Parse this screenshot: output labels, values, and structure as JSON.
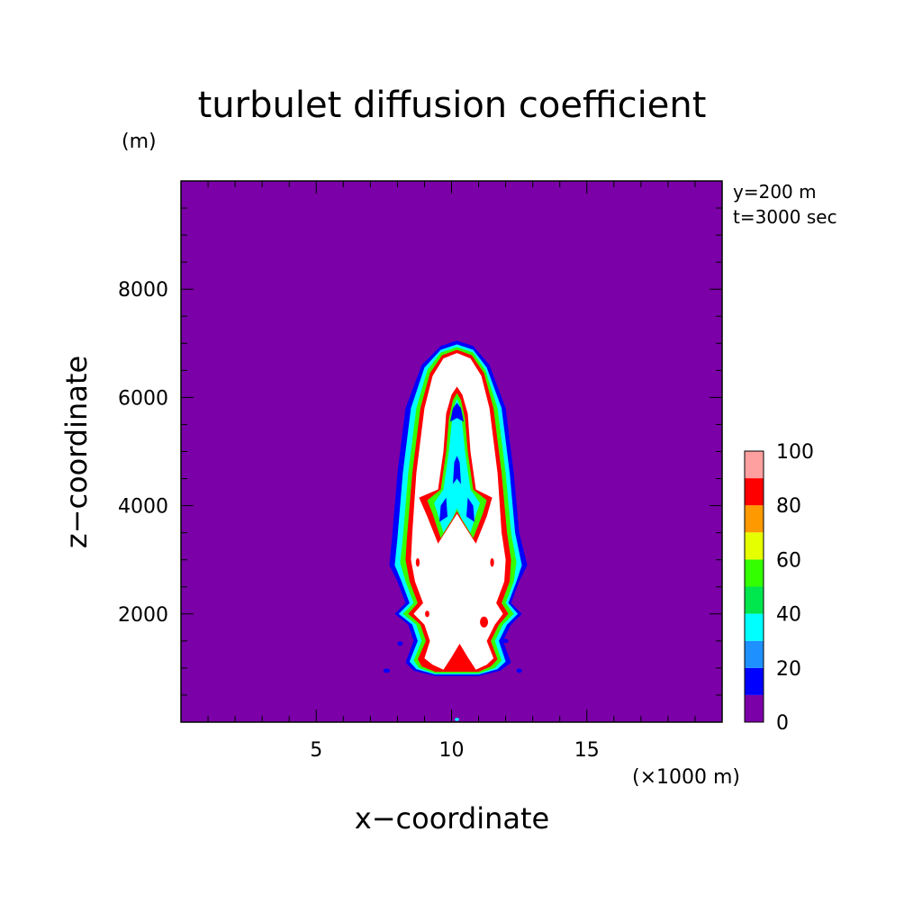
{
  "chart_data": {
    "type": "heatmap",
    "title": "turbulet diffusion coefficient",
    "xlabel": "x−coordinate",
    "ylabel": "z−coordinate",
    "x_unit": "(×1000 m)",
    "y_unit": "(m)",
    "annotations": [
      "y=200 m",
      "t=3000 sec"
    ],
    "xlim": [
      0,
      20
    ],
    "ylim": [
      0,
      10000
    ],
    "x_ticks": [
      5,
      10,
      15
    ],
    "y_ticks": [
      2000,
      4000,
      6000,
      8000
    ],
    "colorbar": {
      "levels": [
        0,
        10,
        20,
        30,
        40,
        50,
        60,
        70,
        80,
        90,
        100
      ],
      "tick_labels": [
        "0",
        "20",
        "40",
        "60",
        "80",
        "100"
      ],
      "colors": [
        "#7b00a8",
        "#0000ff",
        "#1e90ff",
        "#00ffff",
        "#00e64d",
        "#33ff00",
        "#e6ff00",
        "#ff9900",
        "#ff0000",
        "#ffa0a0"
      ],
      "above_max_color": "#ffffff"
    },
    "regions": [
      {
        "name": "outer",
        "level_min": 10,
        "level_max": 20,
        "color": "#0000ff",
        "points": [
          [
            7.7,
            2.9
          ],
          [
            7.8,
            3.4
          ],
          [
            8.0,
            4.6
          ],
          [
            8.3,
            5.8
          ],
          [
            8.9,
            6.6
          ],
          [
            9.6,
            6.95
          ],
          [
            10.2,
            7.05
          ],
          [
            10.8,
            6.95
          ],
          [
            11.4,
            6.6
          ],
          [
            12.0,
            5.8
          ],
          [
            12.3,
            4.6
          ],
          [
            12.5,
            3.5
          ],
          [
            12.8,
            2.9
          ],
          [
            12.5,
            2.6
          ],
          [
            12.2,
            2.2
          ],
          [
            12.6,
            2.0
          ],
          [
            12.2,
            1.8
          ],
          [
            11.9,
            1.5
          ],
          [
            12.2,
            1.1
          ],
          [
            11.8,
            0.95
          ],
          [
            11.0,
            0.85
          ],
          [
            10.2,
            0.85
          ],
          [
            9.4,
            0.85
          ],
          [
            8.6,
            0.95
          ],
          [
            8.3,
            1.1
          ],
          [
            8.6,
            1.5
          ],
          [
            8.4,
            1.8
          ],
          [
            7.9,
            2.0
          ],
          [
            8.3,
            2.2
          ],
          [
            8.0,
            2.6
          ]
        ]
      },
      {
        "name": "ring",
        "level_min": 30,
        "level_max": 40,
        "color": "#00ffff",
        "points": [
          [
            7.9,
            2.9
          ],
          [
            8.0,
            3.4
          ],
          [
            8.2,
            4.6
          ],
          [
            8.5,
            5.8
          ],
          [
            9.0,
            6.55
          ],
          [
            9.6,
            6.88
          ],
          [
            10.2,
            6.98
          ],
          [
            10.8,
            6.88
          ],
          [
            11.3,
            6.55
          ],
          [
            11.85,
            5.8
          ],
          [
            12.15,
            4.6
          ],
          [
            12.35,
            3.5
          ],
          [
            12.6,
            2.9
          ],
          [
            12.4,
            2.6
          ],
          [
            12.1,
            2.2
          ],
          [
            12.45,
            2.0
          ],
          [
            12.05,
            1.8
          ],
          [
            11.75,
            1.5
          ],
          [
            12.0,
            1.12
          ],
          [
            11.7,
            0.98
          ],
          [
            11.0,
            0.88
          ],
          [
            10.2,
            0.88
          ],
          [
            9.4,
            0.88
          ],
          [
            8.7,
            0.98
          ],
          [
            8.45,
            1.12
          ],
          [
            8.75,
            1.5
          ],
          [
            8.55,
            1.8
          ],
          [
            8.05,
            2.0
          ],
          [
            8.45,
            2.2
          ],
          [
            8.15,
            2.6
          ]
        ]
      },
      {
        "name": "mid",
        "level_min": 50,
        "level_max": 60,
        "color": "#33ff00",
        "points": [
          [
            8.1,
            2.95
          ],
          [
            8.2,
            3.4
          ],
          [
            8.4,
            4.6
          ],
          [
            8.7,
            5.8
          ],
          [
            9.1,
            6.5
          ],
          [
            9.6,
            6.83
          ],
          [
            10.2,
            6.93
          ],
          [
            10.8,
            6.83
          ],
          [
            11.25,
            6.5
          ],
          [
            11.7,
            5.8
          ],
          [
            12.0,
            4.6
          ],
          [
            12.2,
            3.5
          ],
          [
            12.4,
            2.95
          ],
          [
            12.3,
            2.6
          ],
          [
            12.0,
            2.2
          ],
          [
            12.3,
            2.0
          ],
          [
            11.9,
            1.8
          ],
          [
            11.6,
            1.5
          ],
          [
            11.85,
            1.14
          ],
          [
            11.6,
            1.0
          ],
          [
            11.0,
            0.9
          ],
          [
            10.2,
            0.9
          ],
          [
            9.4,
            0.9
          ],
          [
            8.8,
            1.0
          ],
          [
            8.6,
            1.14
          ],
          [
            8.9,
            1.5
          ],
          [
            8.7,
            1.8
          ],
          [
            8.2,
            2.0
          ],
          [
            8.6,
            2.2
          ],
          [
            8.3,
            2.6
          ]
        ]
      },
      {
        "name": "red",
        "level_min": 80,
        "level_max": 90,
        "color": "#ff0000",
        "points": [
          [
            8.3,
            3.0
          ],
          [
            8.35,
            3.4
          ],
          [
            8.55,
            4.6
          ],
          [
            8.85,
            5.8
          ],
          [
            9.2,
            6.45
          ],
          [
            9.65,
            6.78
          ],
          [
            10.2,
            6.88
          ],
          [
            10.75,
            6.78
          ],
          [
            11.2,
            6.45
          ],
          [
            11.55,
            5.8
          ],
          [
            11.85,
            4.6
          ],
          [
            12.05,
            3.5
          ],
          [
            12.2,
            3.0
          ],
          [
            12.15,
            2.6
          ],
          [
            11.85,
            2.2
          ],
          [
            12.1,
            2.0
          ],
          [
            11.75,
            1.8
          ],
          [
            11.45,
            1.5
          ],
          [
            11.7,
            1.16
          ],
          [
            11.45,
            1.03
          ],
          [
            11.0,
            0.93
          ],
          [
            10.2,
            0.93
          ],
          [
            9.4,
            0.93
          ],
          [
            8.9,
            1.03
          ],
          [
            8.75,
            1.16
          ],
          [
            9.05,
            1.5
          ],
          [
            8.85,
            1.8
          ],
          [
            8.4,
            2.0
          ],
          [
            8.75,
            2.2
          ],
          [
            8.45,
            2.6
          ]
        ]
      },
      {
        "name": "core",
        "level_min": 100,
        "level_max": null,
        "color": "#ffffff",
        "points": [
          [
            8.5,
            3.0
          ],
          [
            8.55,
            3.5
          ],
          [
            8.7,
            4.6
          ],
          [
            9.0,
            5.8
          ],
          [
            9.3,
            6.4
          ],
          [
            9.7,
            6.72
          ],
          [
            10.2,
            6.82
          ],
          [
            10.7,
            6.72
          ],
          [
            11.1,
            6.4
          ],
          [
            11.4,
            5.8
          ],
          [
            11.7,
            4.6
          ],
          [
            11.85,
            3.5
          ],
          [
            12.0,
            3.0
          ],
          [
            11.95,
            2.6
          ],
          [
            11.65,
            2.2
          ],
          [
            11.9,
            2.0
          ],
          [
            11.6,
            1.8
          ],
          [
            11.3,
            1.5
          ],
          [
            11.55,
            1.18
          ],
          [
            11.3,
            1.06
          ],
          [
            10.9,
            0.97
          ],
          [
            10.6,
            1.2
          ],
          [
            10.3,
            1.45
          ],
          [
            10.0,
            1.2
          ],
          [
            9.7,
            0.97
          ],
          [
            9.3,
            1.06
          ],
          [
            9.0,
            1.18
          ],
          [
            9.2,
            1.5
          ],
          [
            9.0,
            1.8
          ],
          [
            8.6,
            2.0
          ],
          [
            8.95,
            2.2
          ],
          [
            8.65,
            2.6
          ]
        ]
      },
      {
        "name": "inner-red",
        "level_min": 80,
        "level_max": 90,
        "color": "#ff0000",
        "points": [
          [
            9.5,
            3.3
          ],
          [
            9.1,
            3.8
          ],
          [
            8.8,
            4.15
          ],
          [
            9.5,
            4.3
          ],
          [
            9.7,
            5.0
          ],
          [
            9.8,
            5.7
          ],
          [
            10.0,
            6.05
          ],
          [
            10.2,
            6.2
          ],
          [
            10.4,
            6.05
          ],
          [
            10.6,
            5.7
          ],
          [
            10.7,
            5.0
          ],
          [
            10.9,
            4.3
          ],
          [
            11.5,
            4.15
          ],
          [
            11.3,
            3.8
          ],
          [
            10.9,
            3.3
          ],
          [
            10.45,
            3.65
          ],
          [
            10.2,
            3.85
          ],
          [
            9.95,
            3.65
          ]
        ]
      },
      {
        "name": "inner-green",
        "level_min": 50,
        "level_max": 60,
        "color": "#33ff00",
        "points": [
          [
            9.6,
            3.4
          ],
          [
            9.3,
            3.85
          ],
          [
            9.1,
            4.1
          ],
          [
            9.6,
            4.3
          ],
          [
            9.8,
            5.0
          ],
          [
            9.9,
            5.6
          ],
          [
            10.05,
            5.95
          ],
          [
            10.2,
            6.08
          ],
          [
            10.35,
            5.95
          ],
          [
            10.5,
            5.6
          ],
          [
            10.6,
            5.0
          ],
          [
            10.8,
            4.3
          ],
          [
            11.3,
            4.1
          ],
          [
            11.15,
            3.85
          ],
          [
            10.8,
            3.4
          ],
          [
            10.4,
            3.72
          ],
          [
            10.2,
            3.9
          ],
          [
            10.0,
            3.72
          ]
        ]
      },
      {
        "name": "inner-cyan",
        "level_min": 30,
        "level_max": 40,
        "color": "#00ffff",
        "points": [
          [
            9.7,
            3.5
          ],
          [
            9.45,
            3.9
          ],
          [
            9.35,
            4.05
          ],
          [
            9.7,
            4.3
          ],
          [
            9.9,
            5.0
          ],
          [
            10.0,
            5.5
          ],
          [
            10.1,
            5.85
          ],
          [
            10.2,
            5.98
          ],
          [
            10.3,
            5.85
          ],
          [
            10.4,
            5.5
          ],
          [
            10.5,
            5.0
          ],
          [
            10.7,
            4.3
          ],
          [
            11.05,
            4.05
          ],
          [
            10.95,
            3.9
          ],
          [
            10.7,
            3.5
          ],
          [
            10.35,
            3.78
          ],
          [
            10.2,
            3.95
          ],
          [
            10.05,
            3.78
          ]
        ]
      },
      {
        "name": "inner-blue-top",
        "level_min": 10,
        "level_max": 20,
        "color": "#0000ff",
        "points": [
          [
            9.95,
            5.55
          ],
          [
            10.05,
            5.8
          ],
          [
            10.2,
            5.9
          ],
          [
            10.35,
            5.8
          ],
          [
            10.45,
            5.55
          ],
          [
            10.2,
            5.62
          ]
        ]
      },
      {
        "name": "inner-blue-mid",
        "level_min": 10,
        "level_max": 20,
        "color": "#0000ff",
        "points": [
          [
            10.05,
            4.4
          ],
          [
            10.1,
            4.8
          ],
          [
            10.2,
            4.92
          ],
          [
            10.3,
            4.8
          ],
          [
            10.35,
            4.4
          ],
          [
            10.2,
            4.5
          ]
        ]
      },
      {
        "name": "lobe-left-blue",
        "level_min": 10,
        "level_max": 20,
        "color": "#0000ff",
        "points": [
          [
            9.55,
            3.7
          ],
          [
            9.6,
            4.0
          ],
          [
            9.8,
            4.15
          ],
          [
            9.85,
            3.8
          ]
        ]
      },
      {
        "name": "lobe-right-blue",
        "level_min": 10,
        "level_max": 20,
        "color": "#0000ff",
        "points": [
          [
            10.85,
            3.7
          ],
          [
            10.8,
            4.0
          ],
          [
            10.6,
            4.15
          ],
          [
            10.55,
            3.8
          ]
        ]
      }
    ],
    "blobs": [
      {
        "color": "#0000ff",
        "x": 7.6,
        "z": 0.95,
        "rx": 0.12,
        "rz": 0.04
      },
      {
        "color": "#0000ff",
        "x": 8.1,
        "z": 1.45,
        "rx": 0.1,
        "rz": 0.04
      },
      {
        "color": "#0000ff",
        "x": 12.0,
        "z": 1.5,
        "rx": 0.1,
        "rz": 0.04
      },
      {
        "color": "#0000ff",
        "x": 12.5,
        "z": 0.95,
        "rx": 0.1,
        "rz": 0.04
      },
      {
        "color": "#ff0000",
        "x": 9.1,
        "z": 2.0,
        "rx": 0.08,
        "rz": 0.06
      },
      {
        "color": "#ff0000",
        "x": 11.2,
        "z": 1.85,
        "rx": 0.15,
        "rz": 0.1
      },
      {
        "color": "#ff0000",
        "x": 8.75,
        "z": 2.95,
        "rx": 0.07,
        "rz": 0.08
      },
      {
        "color": "#ff0000",
        "x": 11.5,
        "z": 2.95,
        "rx": 0.07,
        "rz": 0.08
      },
      {
        "color": "#00ffff",
        "x": 10.2,
        "z": 0.05,
        "rx": 0.08,
        "rz": 0.03
      }
    ]
  }
}
